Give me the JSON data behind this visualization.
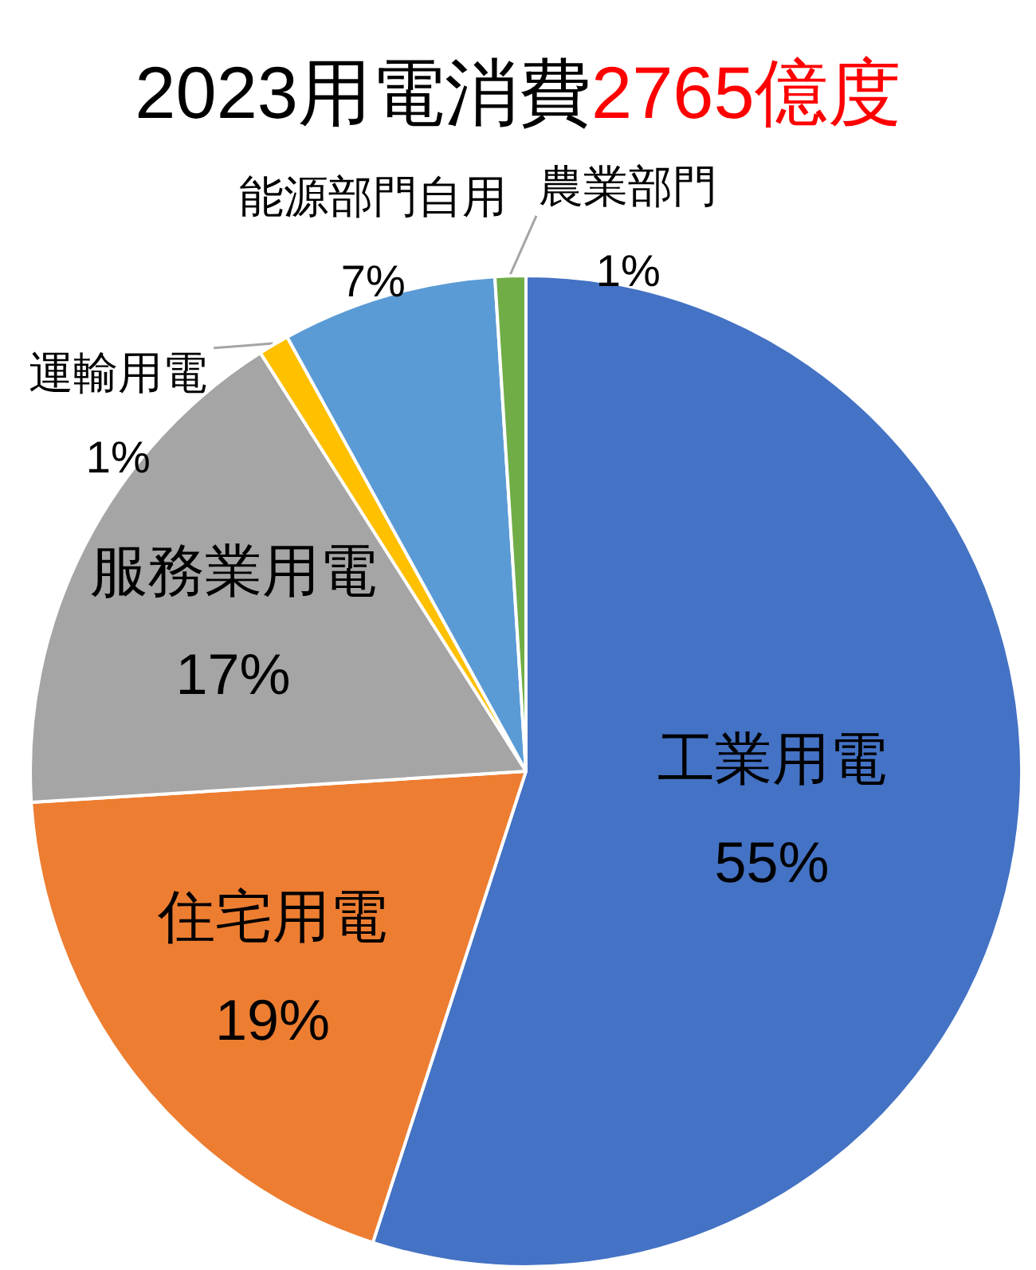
{
  "chart_data": {
    "type": "pie",
    "title": "2023用電消費",
    "subtitle": "2765億度",
    "categories": [
      "工業用電",
      "住宅用電",
      "服務業用電",
      "運輸用電",
      "能源部門自用",
      "農業部門"
    ],
    "values": [
      55,
      19,
      17,
      1,
      7,
      1
    ],
    "colors": [
      "#4472c4",
      "#ed7d31",
      "#a5a5a5",
      "#ffc000",
      "#5b9bd5",
      "#70ad47"
    ],
    "value_labels": [
      "55%",
      "19%",
      "17%",
      "1%",
      "7%",
      "1%"
    ]
  }
}
